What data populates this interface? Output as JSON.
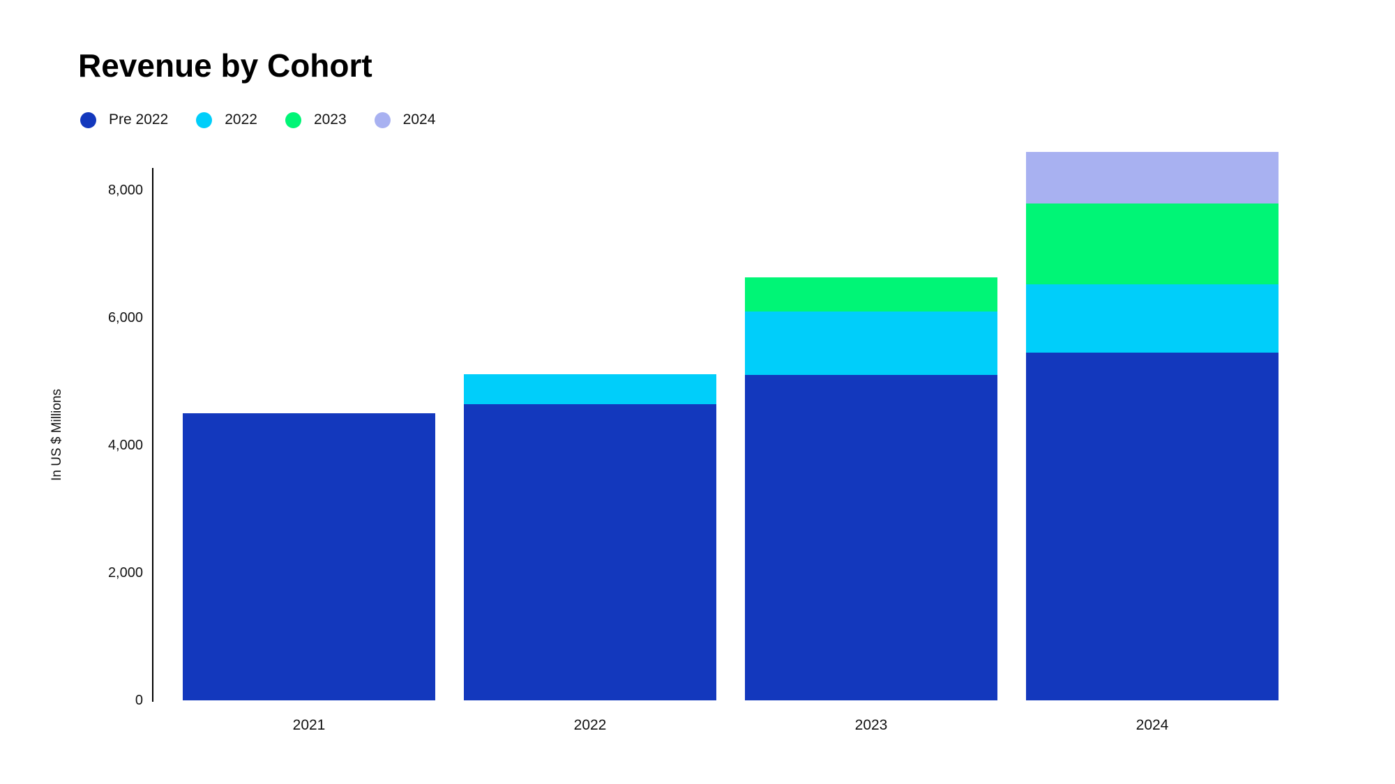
{
  "title": "Revenue by Cohort",
  "colors": {
    "background": "#ffffff",
    "axis_line": "#000000",
    "title_text": "#000000",
    "label_text": "#111111",
    "pre_2022": "#1338BD",
    "cohort_2022": "#00CEFA",
    "cohort_2023": "#00F576",
    "cohort_2024": "#A8B1F1"
  },
  "chart_data": {
    "type": "bar",
    "stacked": true,
    "title": "Revenue by Cohort",
    "ylabel": "In US $ Millions",
    "xlabel": "",
    "categories": [
      "2021",
      "2022",
      "2023",
      "2024"
    ],
    "series": [
      {
        "name": "Pre 2022",
        "color": "#1338BD",
        "values": [
          4500,
          4650,
          5100,
          5450
        ]
      },
      {
        "name": "2022",
        "color": "#00CEFA",
        "values": [
          0,
          470,
          1000,
          1070
        ]
      },
      {
        "name": "2023",
        "color": "#00F576",
        "values": [
          0,
          0,
          530,
          1270
        ]
      },
      {
        "name": "2024",
        "color": "#A8B1F1",
        "values": [
          0,
          0,
          0,
          810
        ]
      }
    ],
    "stack_totals": [
      4500,
      5120,
      6630,
      8600
    ],
    "y_ticks": [
      0,
      2000,
      4000,
      6000,
      8000
    ],
    "y_tick_labels": [
      "0",
      "2,000",
      "4,000",
      "6,000",
      "8,000"
    ],
    "y_axis_range_rendered": [
      0,
      8600
    ],
    "grid": false,
    "legend_position": "top-left"
  }
}
